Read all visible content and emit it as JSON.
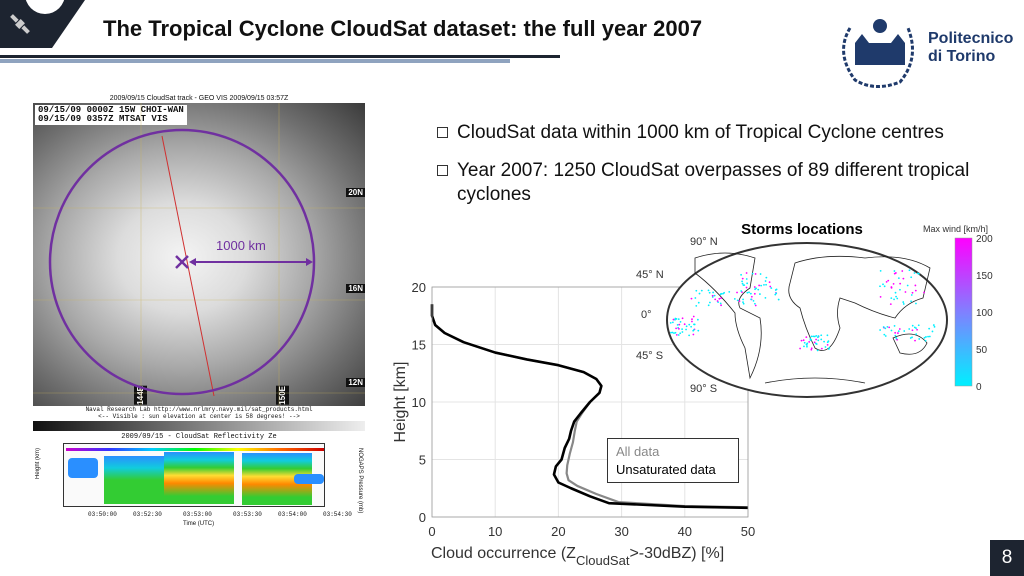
{
  "header": {
    "title": "The Tropical Cyclone CloudSat dataset: the full year 2007",
    "logo_text_line1": "Politecnico",
    "logo_text_line2": "di Torino",
    "logo_year": "1859"
  },
  "bullets": [
    {
      "text": "CloudSat data within 1000 km of Tropical Cyclone centres"
    },
    {
      "text": "Year 2007: 1250 CloudSat overpasses of 89 different tropical cyclones"
    }
  ],
  "satellite_image": {
    "top_caption": "2009/09/15 CloudSat track - GEO VIS  2009/09/15 03:57Z",
    "header_line1": "09/15/09 0000Z  15W CHOI-WAN",
    "header_line2": "09/15/09 0357Z  MTSAT VIS",
    "radius_label": "1000 km",
    "lat_labels": [
      "20N",
      "16N",
      "12N"
    ],
    "lon_labels": [
      "144E",
      "150E"
    ],
    "footer_line1": "Naval Research Lab http://www.nrlmry.navy.mil/sat_products.html",
    "footer_line2": "<-- Visible : sun elevation at center is 58 degrees! -->"
  },
  "reflectivity": {
    "title": "2009/09/15 - CloudSat Reflectivity Ze",
    "ylabel": "Height (km)",
    "y2label": "NOGAPS Pressure (mb)",
    "xlabel": "Time (UTC)",
    "times": [
      "03:50:00",
      "03:52:30",
      "03:53:00",
      "03:53:30",
      "03:54:00",
      "03:54:30"
    ]
  },
  "map": {
    "title": "Storms locations",
    "lat_labels": [
      "90° N",
      "45° N",
      "0°",
      "45° S",
      "90° S"
    ],
    "colorbar_label": "Max wind [km/h]",
    "colorbar_ticks": [
      "200",
      "150",
      "100",
      "50",
      "0"
    ],
    "colors": {
      "low": "#00f0ff",
      "high": "#ff00ff"
    }
  },
  "chart_data": {
    "type": "line",
    "title": "",
    "xlabel": "Cloud occurrence (Z_CloudSat >-30dBZ) [%]",
    "xlabel_main": "Cloud occurrence (Z",
    "xlabel_sub": "CloudSat",
    "xlabel_end": ">-30dBZ) [%]",
    "ylabel": "Height [km]",
    "xlim": [
      0,
      50
    ],
    "ylim": [
      0,
      20
    ],
    "xticks": [
      "0",
      "10",
      "20",
      "30",
      "40",
      "50"
    ],
    "yticks": [
      "0",
      "5",
      "10",
      "15",
      "20"
    ],
    "grid": true,
    "legend_placement": "lower-right",
    "series": [
      {
        "name": "All data",
        "color": "#888888",
        "points": [
          [
            0,
            18.5
          ],
          [
            0,
            17.5
          ],
          [
            0.5,
            16.7
          ],
          [
            2,
            16
          ],
          [
            5,
            15.2
          ],
          [
            10,
            14.3
          ],
          [
            15,
            13.7
          ],
          [
            20,
            13.2
          ],
          [
            24,
            12.6
          ],
          [
            26,
            12
          ],
          [
            26.8,
            11.4
          ],
          [
            26.5,
            10.8
          ],
          [
            25,
            10
          ],
          [
            23.7,
            9
          ],
          [
            22.9,
            8.3
          ],
          [
            22.6,
            7.5
          ],
          [
            22.3,
            6.5
          ],
          [
            21.8,
            5.5
          ],
          [
            21.4,
            4.5
          ],
          [
            21.3,
            3.8
          ],
          [
            21.6,
            3.2
          ],
          [
            23,
            2.7
          ],
          [
            26,
            2
          ],
          [
            29.5,
            1.3
          ],
          [
            40,
            0.95
          ],
          [
            50,
            0.85
          ]
        ]
      },
      {
        "name": "Unsaturated data",
        "color": "#000000",
        "points": [
          [
            0,
            18.5
          ],
          [
            0,
            17.5
          ],
          [
            0.5,
            16.7
          ],
          [
            2,
            16
          ],
          [
            5,
            15.2
          ],
          [
            10,
            14.3
          ],
          [
            15,
            13.7
          ],
          [
            20,
            13.2
          ],
          [
            24,
            12.6
          ],
          [
            26,
            12
          ],
          [
            26.8,
            11.4
          ],
          [
            26.5,
            10.8
          ],
          [
            25,
            10
          ],
          [
            23.5,
            9
          ],
          [
            22.5,
            8.3
          ],
          [
            22,
            7.5
          ],
          [
            21.7,
            6.8
          ],
          [
            21,
            6
          ],
          [
            20.5,
            5
          ],
          [
            19.6,
            4.4
          ],
          [
            19.3,
            3.7
          ],
          [
            20,
            3
          ],
          [
            22,
            2.5
          ],
          [
            25,
            1.8
          ],
          [
            28,
            1.2
          ],
          [
            40,
            0.9
          ],
          [
            50,
            0.8
          ]
        ]
      }
    ]
  },
  "footer": {
    "page_number": "8"
  }
}
